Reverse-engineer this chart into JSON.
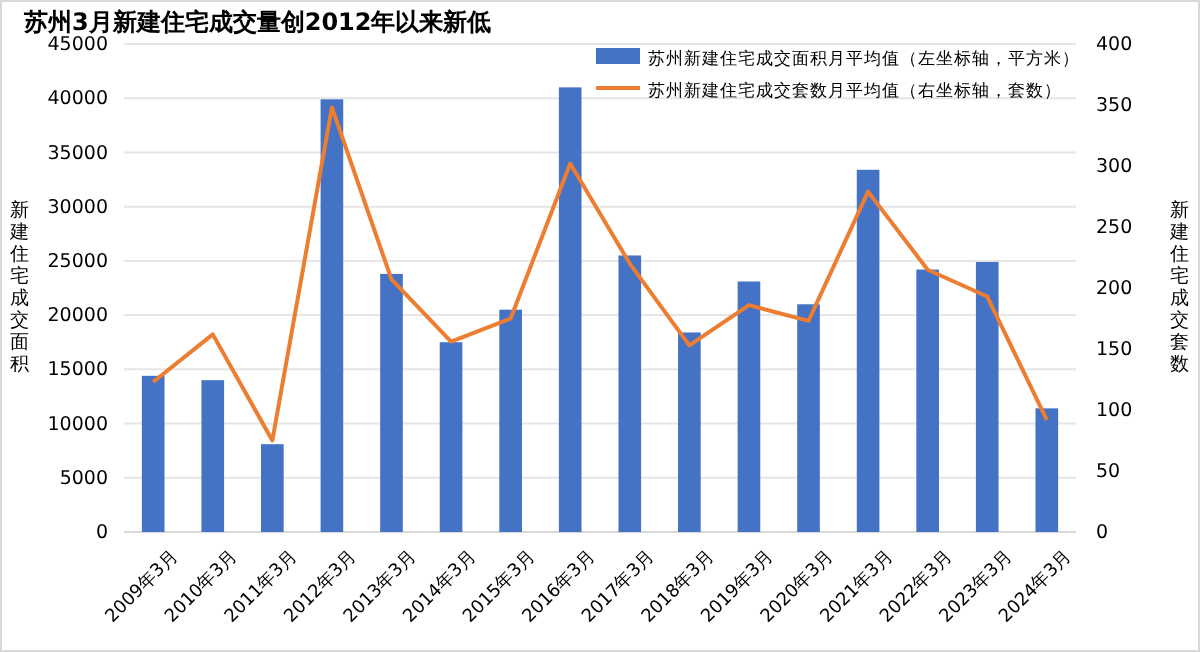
{
  "chart_data": {
    "type": "bar",
    "title": "苏州3月新建住宅成交量创2012年以来新低",
    "ylabel": "新建住宅成交面积",
    "y2label": "新建住宅成交套数",
    "categories": [
      "2009年3月",
      "2010年3月",
      "2011年3月",
      "2012年3月",
      "2013年3月",
      "2014年3月",
      "2015年3月",
      "2016年3月",
      "2017年3月",
      "2018年3月",
      "2019年3月",
      "2020年3月",
      "2021年3月",
      "2022年3月",
      "2023年3月",
      "2024年3月"
    ],
    "series": [
      {
        "name": "苏州新建住宅成交面积月平均值（左坐标轴，平方米）",
        "color": "#4472c4",
        "values": [
          14400,
          14000,
          8100,
          39900,
          23800,
          17500,
          20500,
          41000,
          25500,
          18400,
          23100,
          21000,
          33400,
          24200,
          24900,
          11400
        ]
      },
      {
        "name": "苏州新建住宅成交套数月平均值（右坐标轴，套数）",
        "type": "line",
        "axis": "y2",
        "color": "#ed7d31",
        "values": [
          123,
          162,
          75,
          348,
          207,
          156,
          175,
          302,
          220,
          153,
          186,
          173,
          279,
          215,
          193,
          92
        ]
      }
    ],
    "ylim": [
      0,
      45000
    ],
    "yticks": [
      0,
      5000,
      10000,
      15000,
      20000,
      25000,
      30000,
      35000,
      40000,
      45000
    ],
    "y2lim": [
      0,
      400
    ],
    "y2ticks": [
      0,
      50,
      100,
      150,
      200,
      250,
      300,
      350,
      400
    ],
    "grid": "y",
    "legend": "top right",
    "marker": "none",
    "line_style": "solid"
  }
}
